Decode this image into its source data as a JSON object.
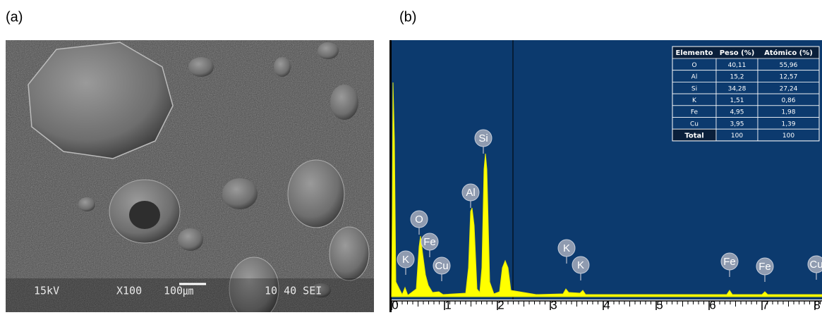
{
  "panels": [
    {
      "label": "(a)",
      "overlay": [
        "15kV",
        "X100",
        "100㎛",
        "10 40 SEI"
      ]
    },
    {
      "label": "(b)"
    }
  ],
  "spectrum": {
    "xticks": [
      0,
      1,
      2,
      3,
      4,
      5,
      6,
      7,
      8
    ],
    "peak_labels": [
      "K",
      "O",
      "Fe",
      "Cu",
      "Al",
      "Si",
      "K",
      "K",
      "Fe",
      "Fe",
      "Cu"
    ]
  },
  "table": {
    "header": [
      "Elemento",
      "Peso (%)",
      "Atómico (%)"
    ],
    "rows": [
      [
        "O",
        "40,11",
        "55,96"
      ],
      [
        "Al",
        "15,2",
        "12,57"
      ],
      [
        "Si",
        "34,28",
        "27,24"
      ],
      [
        "K",
        "1,51",
        "0,86"
      ],
      [
        "Fe",
        "4,95",
        "1,98"
      ],
      [
        "Cu",
        "3,95",
        "1,39"
      ],
      [
        "Total",
        "100",
        "100"
      ]
    ]
  }
}
